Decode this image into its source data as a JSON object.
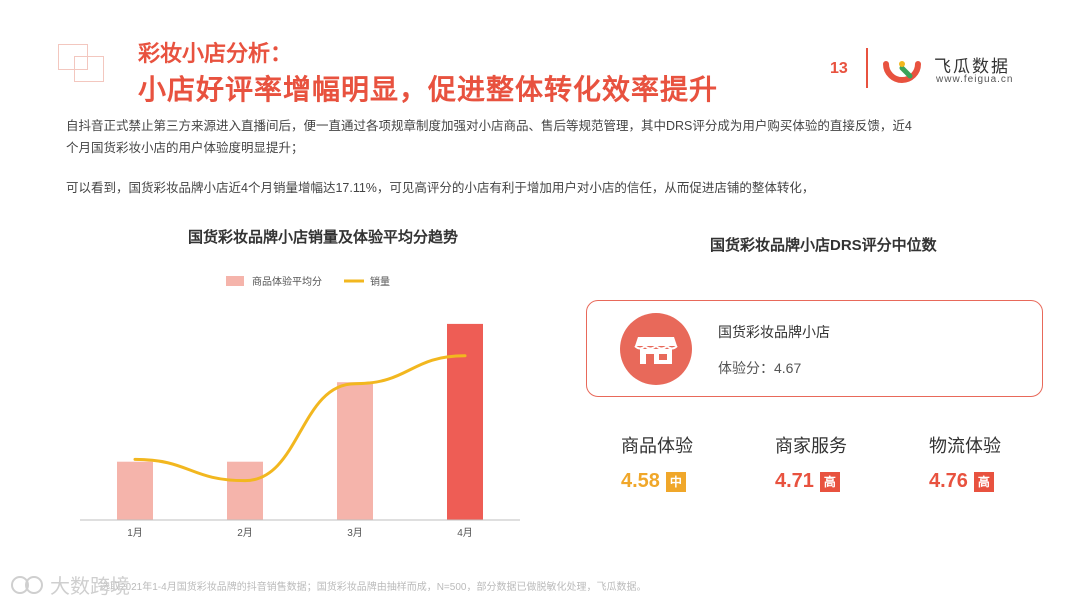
{
  "header": {
    "title_small": "彩妆小店分析：",
    "title_big": "小店好评率增幅明显，促进整体转化效率提升",
    "page_number": "13",
    "brand_name": "飞瓜数据",
    "brand_url": "www.feigua.cn"
  },
  "paragraphs": {
    "p1_line1": "自抖音正式禁止第三方来源进入直播间后，便一直通过各项规章制度加强对小店商品、售后等规范管理，其中DRS评分成为用户购买体验的直接反馈，近4",
    "p1_line2": "个月国货彩妆小店的用户体验度明显提升；",
    "p2": "可以看到，国货彩妆品牌小店近4个月销量增幅达17.11%，可见高评分的小店有利于增加用户对小店的信任，从而促进店铺的整体转化，"
  },
  "chart_data": {
    "type": "bar",
    "title": "国货彩妆品牌小店销量及体验平均分趋势",
    "categories": [
      "1月",
      "2月",
      "3月",
      "4月"
    ],
    "series": [
      {
        "name": "商品体验平均分",
        "type": "bar",
        "values": [
          4.41,
          4.41,
          4.56,
          4.67
        ]
      },
      {
        "name": "销量",
        "type": "line",
        "values": [
          100,
          96.5,
          112.5,
          117.11
        ]
      }
    ],
    "ylim_bar": [
      4.3,
      4.7
    ],
    "ylim_line": [
      90,
      125
    ],
    "legend_position": "top-left",
    "grid": false
  },
  "drs": {
    "title": "国货彩妆品牌小店DRS评分中位数",
    "card_name": "国货彩妆品牌小店",
    "card_score": "体验分：4.67",
    "metrics": [
      {
        "label": "商品体验",
        "value": "4.58",
        "badge": "中"
      },
      {
        "label": "商家服务",
        "value": "4.71",
        "badge": "高"
      },
      {
        "label": "物流体验",
        "value": "4.76",
        "badge": "高"
      }
    ]
  },
  "footnote": "选取2021年1-4月国货彩妆品牌的抖音销售数据；国货彩妆品牌由抽样而成，N=500，部分数据已做脱敏化处理，飞瓜数据。",
  "watermark": "大数跨境",
  "colors": {
    "accent": "#e8523f",
    "bar_light": "#f5b4ab",
    "bar_dark": "#ee5d55",
    "line": "#f2b71f",
    "mid_badge": "#f0a72a"
  }
}
